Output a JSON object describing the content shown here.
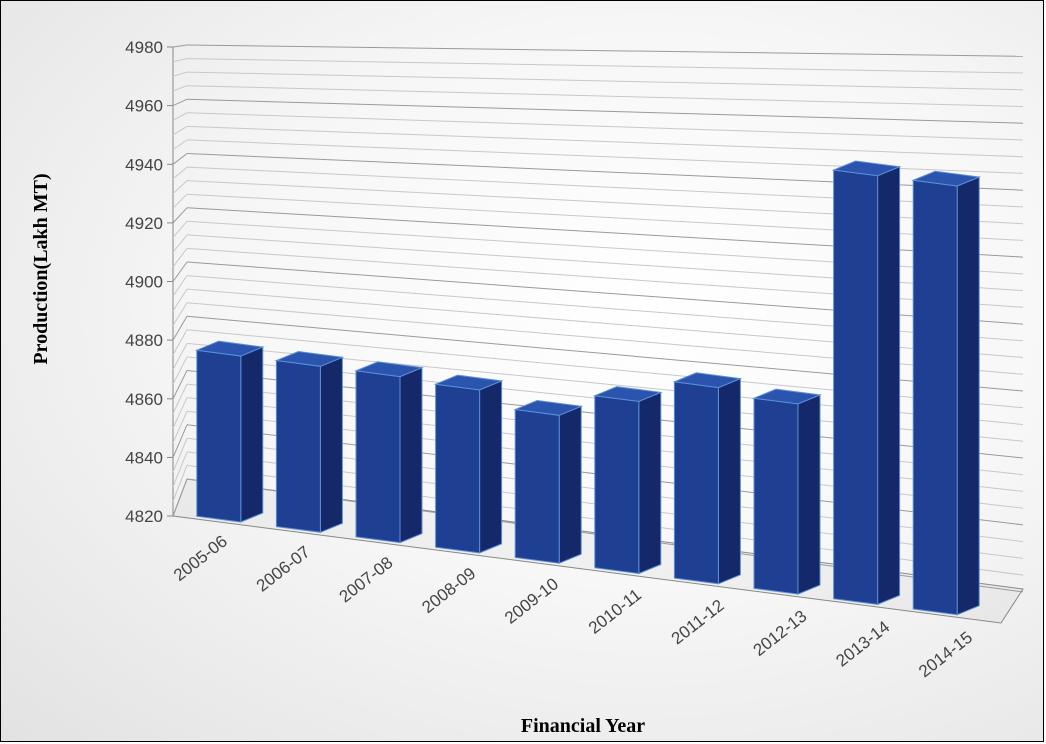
{
  "chart_data": {
    "type": "bar",
    "title": "",
    "xlabel": "Financial Year",
    "ylabel": "Production(Lakh MT)",
    "categories": [
      "2005-06",
      "2006-07",
      "2007-08",
      "2008-09",
      "2009-10",
      "2010-11",
      "2011-12",
      "2012-13",
      "2013-14",
      "2014-15"
    ],
    "series": [
      {
        "values": [
          4875,
          4875,
          4875,
          4874,
          4869,
          4877,
          4885,
          4883,
          4962,
          4962
        ]
      }
    ],
    "ylim": [
      4820,
      4980
    ],
    "yticks": [
      "4820",
      "4840",
      "4860",
      "4880",
      "4900",
      "4920",
      "4940",
      "4960",
      "4980"
    ],
    "grid": true,
    "style": "3d-bar",
    "colors": {
      "bar_front": "#1f3f93",
      "bar_side": "#14286a",
      "bar_top": "#2a54ad",
      "bar_edge": "#5b8fd6"
    }
  }
}
